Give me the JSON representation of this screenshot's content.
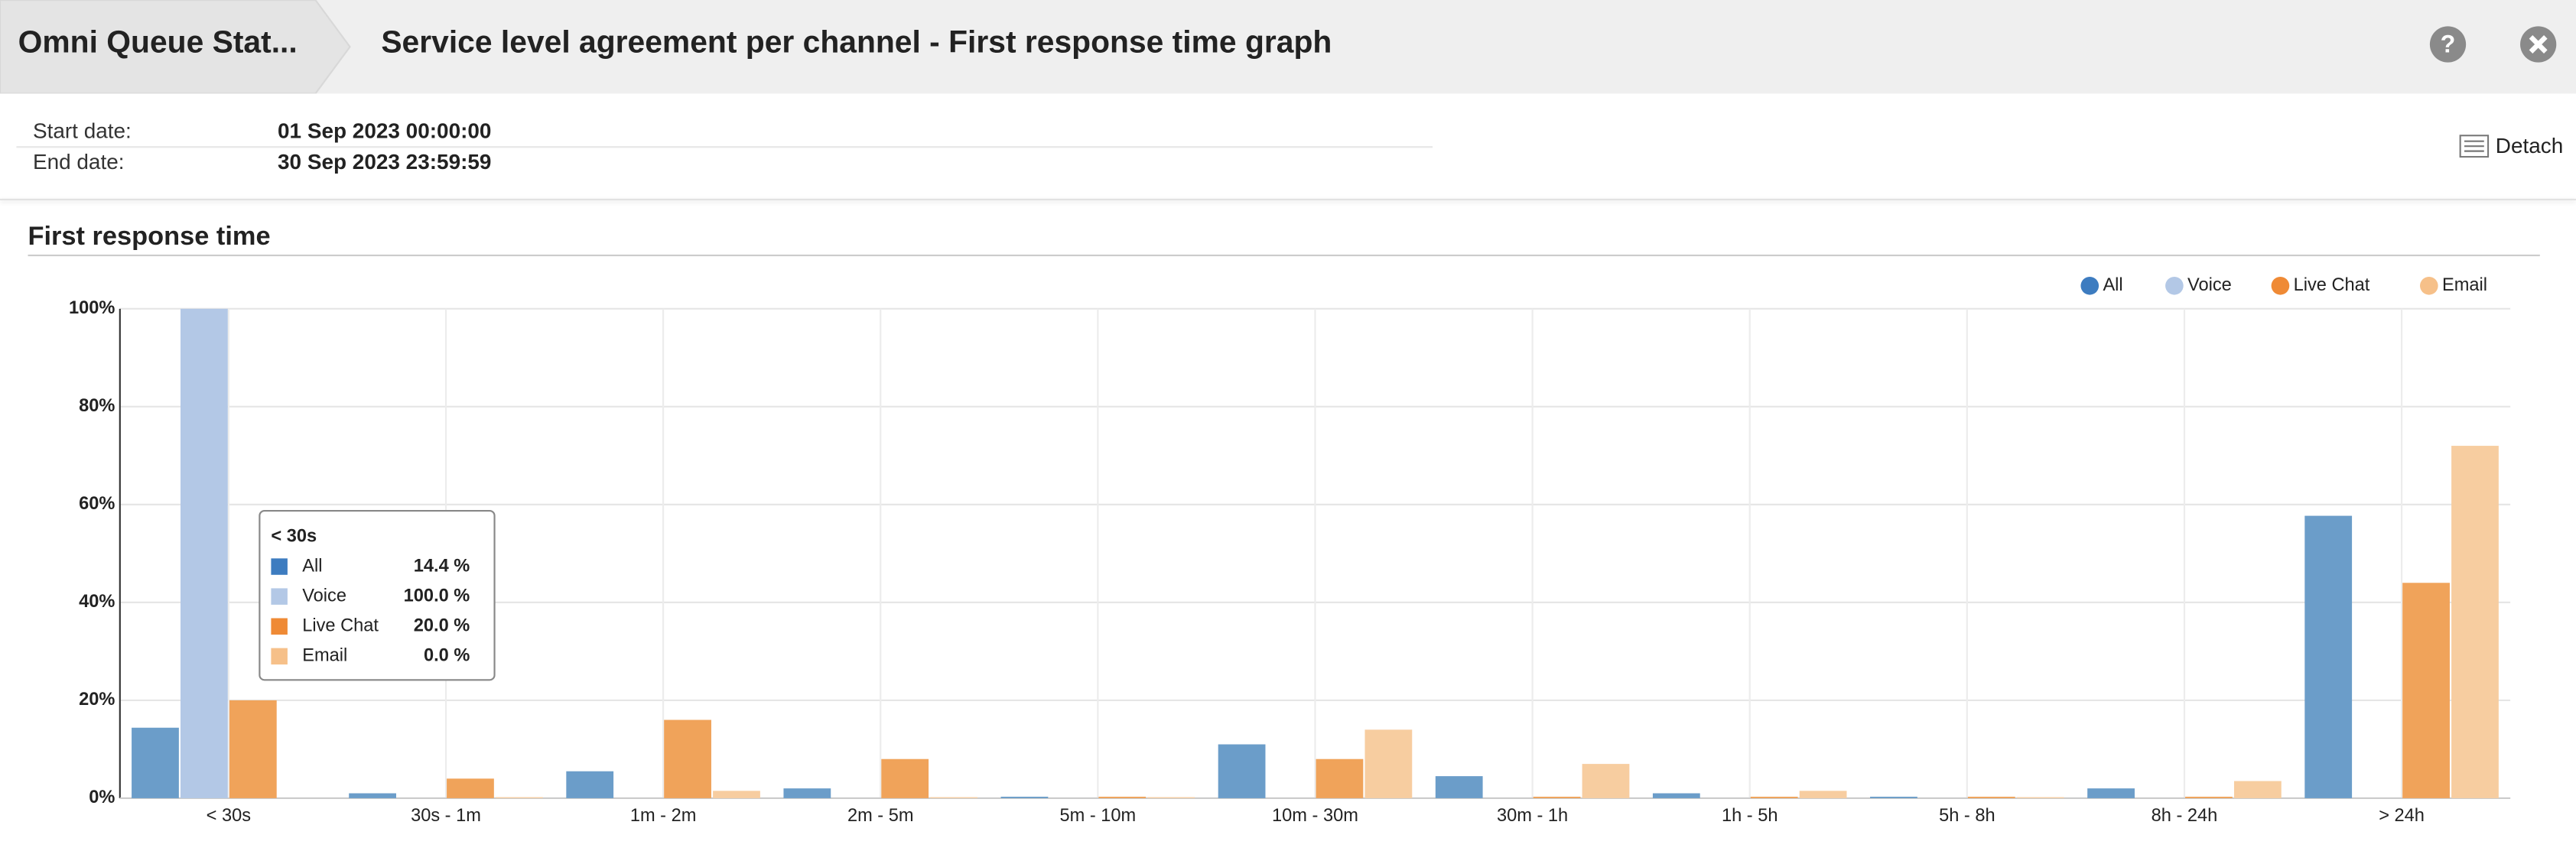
{
  "header": {
    "breadcrumb": "Omni Queue Stat...",
    "title": "Service level agreement per channel - First response time graph"
  },
  "filters": [
    {
      "label": "Start date:",
      "value": "01 Sep 2023 00:00:00"
    },
    {
      "label": "End date:",
      "value": "30 Sep 2023 23:59:59"
    }
  ],
  "detach": "Detach",
  "section_title": "First response time",
  "chart_data": {
    "type": "bar",
    "categories": [
      "< 30s",
      "30s - 1m",
      "1m - 2m",
      "2m - 5m",
      "5m - 10m",
      "10m - 30m",
      "30m - 1h",
      "1h - 5h",
      "5h - 8h",
      "8h - 24h",
      "> 24h"
    ],
    "series": [
      {
        "name": "All",
        "color": "#6b9dc9",
        "values": [
          14.4,
          1.0,
          5.5,
          2.0,
          0.3,
          11.0,
          4.5,
          1.0,
          0.3,
          2.0,
          57.7
        ]
      },
      {
        "name": "Voice",
        "color": "#b3c8e6",
        "values": [
          100.0,
          0,
          0,
          0,
          0,
          0,
          0,
          0,
          0,
          0,
          0
        ]
      },
      {
        "name": "Live Chat",
        "color": "#f0a35a",
        "values": [
          20.0,
          4.0,
          16.0,
          8.0,
          0.3,
          8.0,
          0.3,
          0.3,
          0.3,
          0.3,
          44.0
        ]
      },
      {
        "name": "Email",
        "color": "#f7cda0",
        "values": [
          0.0,
          0.2,
          1.5,
          0.2,
          0.2,
          14.0,
          7.0,
          1.5,
          0.2,
          3.5,
          72.0
        ]
      }
    ],
    "legend_colors": [
      "#3d7cc0",
      "#b3c8e6",
      "#ef8a35",
      "#f6c089"
    ],
    "ylim": [
      0,
      100
    ],
    "yticks": [
      {
        "value": 0,
        "label": "0%"
      },
      {
        "value": 20,
        "label": "20%"
      },
      {
        "value": 40,
        "label": "40%"
      },
      {
        "value": 60,
        "label": "60%"
      },
      {
        "value": 80,
        "label": "80%"
      },
      {
        "value": 100,
        "label": "100%"
      }
    ],
    "grid": true,
    "legend": "top-right",
    "tooltip": {
      "category": 0,
      "value_labels": [
        "14.4 %",
        "100.0 %",
        "20.0 %",
        "0.0 %"
      ]
    }
  }
}
